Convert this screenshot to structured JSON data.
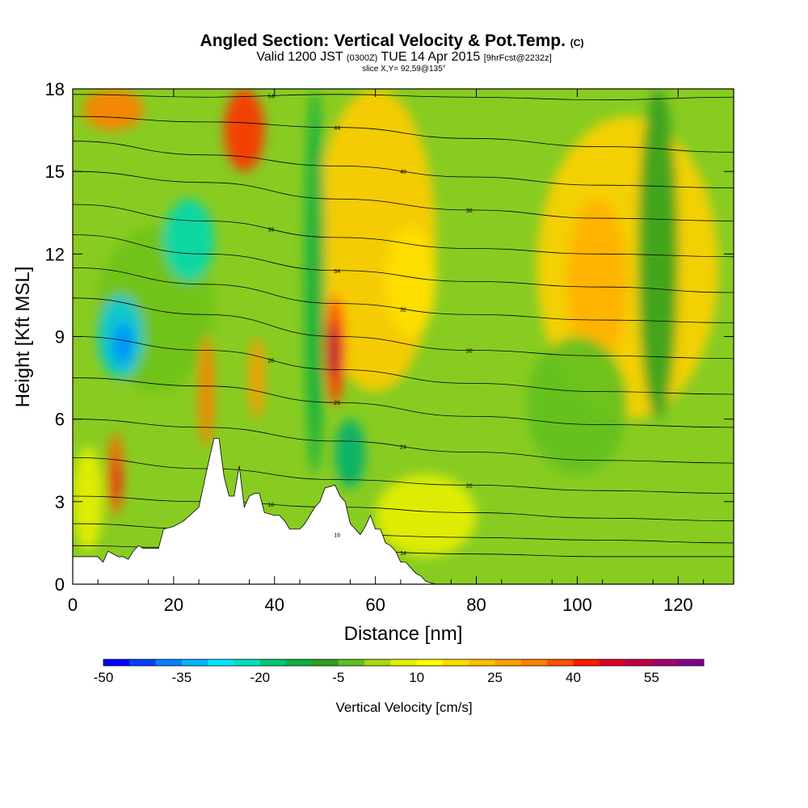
{
  "chart_data": {
    "type": "heatmap",
    "title": "Angled Section: Vertical Velocity & Pot.Temp.",
    "title_suffix": "(C)",
    "subtitle_parts": {
      "valid": "Valid 1200 JST",
      "utc": "(0300Z)",
      "date": "TUE 14 Apr 2015",
      "fcst": "[9hrFcst@2232z]"
    },
    "slice_label": "slice X,Y= 92,59@135°",
    "xlabel": "Distance [nm]",
    "ylabel": "Height [Kft MSL]",
    "xlim": [
      0,
      131
    ],
    "ylim": [
      0,
      18
    ],
    "x_ticks": [
      "0",
      "20",
      "40",
      "60",
      "80",
      "100",
      "120"
    ],
    "y_ticks": [
      "0",
      "3",
      "6",
      "9",
      "12",
      "15",
      "18"
    ],
    "colorbar": {
      "label": "Vertical Velocity [cm/s]",
      "range": [
        -50,
        60
      ],
      "step": 5,
      "tick_labels": [
        "-50",
        "-35",
        "-20",
        "-5",
        "10",
        "25",
        "40",
        "55"
      ],
      "colors": [
        "#0000ff",
        "#0040ff",
        "#0080ff",
        "#00b4ff",
        "#00e8ff",
        "#00e0c0",
        "#00c870",
        "#10b040",
        "#30a020",
        "#60c020",
        "#a8d810",
        "#e0f000",
        "#ffff00",
        "#ffdc00",
        "#ffc000",
        "#ffa000",
        "#ff8000",
        "#ff5000",
        "#ff1800",
        "#e00020",
        "#c00040",
        "#a00070",
        "#800090"
      ]
    },
    "terrain_kft": [
      [
        0,
        1
      ],
      [
        5,
        1
      ],
      [
        6,
        0.8
      ],
      [
        7,
        1.2
      ],
      [
        9,
        1
      ],
      [
        10,
        1
      ],
      [
        11,
        0.9
      ],
      [
        12,
        1.2
      ],
      [
        13,
        1.4
      ],
      [
        14,
        1.3
      ],
      [
        17,
        1.3
      ],
      [
        18,
        2.0
      ],
      [
        20,
        2.1
      ],
      [
        22,
        2.3
      ],
      [
        25,
        2.8
      ],
      [
        27,
        4.5
      ],
      [
        28,
        5.3
      ],
      [
        29,
        5.3
      ],
      [
        30,
        3.9
      ],
      [
        31,
        3.2
      ],
      [
        32,
        3.2
      ],
      [
        33,
        4.3
      ],
      [
        34,
        2.8
      ],
      [
        35,
        3.2
      ],
      [
        36,
        3.3
      ],
      [
        37,
        3.3
      ],
      [
        38,
        2.6
      ],
      [
        40,
        2.5
      ],
      [
        41,
        2.5
      ],
      [
        42,
        2.3
      ],
      [
        43,
        2.0
      ],
      [
        45,
        2.0
      ],
      [
        46,
        2.2
      ],
      [
        47,
        2.5
      ],
      [
        48,
        2.8
      ],
      [
        49,
        3.0
      ],
      [
        50,
        3.5
      ],
      [
        52,
        3.6
      ],
      [
        53,
        3.2
      ],
      [
        54,
        3.0
      ],
      [
        55,
        2.2
      ],
      [
        56,
        2.0
      ],
      [
        57,
        1.8
      ],
      [
        58,
        2.1
      ],
      [
        59,
        2.5
      ],
      [
        60,
        2.0
      ],
      [
        61,
        2.0
      ],
      [
        62,
        1.5
      ],
      [
        63,
        1.4
      ],
      [
        64,
        1.2
      ],
      [
        65,
        0.8
      ],
      [
        66,
        0.8
      ],
      [
        67,
        0.6
      ],
      [
        68,
        0.4
      ],
      [
        69,
        0.3
      ],
      [
        70,
        0.1
      ],
      [
        72,
        0
      ],
      [
        131,
        0
      ]
    ],
    "theta_contours": [
      {
        "label": "64",
        "levels": [
          17.8,
          17.7,
          17.8,
          17.7,
          17.6,
          17.7
        ]
      },
      {
        "label": "44",
        "levels": [
          17.0,
          16.8,
          16.6,
          16.2,
          15.9,
          15.7
        ]
      },
      {
        "label": "40",
        "levels": [
          16.1,
          15.6,
          15.2,
          14.8,
          14.5,
          14.4
        ]
      },
      {
        "label": "38",
        "levels": [
          15.0,
          14.6,
          14.0,
          13.6,
          13.3,
          13.2
        ]
      },
      {
        "label": "36",
        "levels": [
          13.8,
          13.2,
          12.6,
          12.2,
          12.0,
          11.9
        ]
      },
      {
        "label": "34",
        "levels": [
          12.7,
          12.0,
          11.4,
          11.0,
          10.8,
          10.6
        ]
      },
      {
        "label": "32",
        "levels": [
          11.5,
          10.9,
          10.2,
          9.8,
          9.6,
          9.5
        ]
      },
      {
        "label": "30",
        "levels": [
          10.4,
          9.8,
          9.0,
          8.5,
          8.3,
          8.2
        ]
      },
      {
        "label": "28",
        "levels": [
          9.0,
          8.5,
          7.8,
          7.3,
          7.0,
          6.9
        ]
      },
      {
        "label": "26",
        "levels": [
          7.5,
          7.2,
          6.6,
          6.1,
          5.8,
          5.7
        ]
      },
      {
        "label": "24",
        "levels": [
          6.0,
          5.7,
          5.2,
          4.8,
          4.5,
          4.4
        ]
      },
      {
        "label": "20",
        "levels": [
          4.6,
          4.2,
          3.8,
          3.6,
          3.4,
          3.3
        ]
      },
      {
        "label": "18",
        "levels": [
          3.2,
          3.0,
          2.8,
          2.6,
          2.4,
          2.3
        ]
      },
      {
        "label": "16",
        "levels": [
          2.2,
          2.0,
          1.8,
          1.7,
          1.6,
          1.5
        ]
      },
      {
        "label": "14",
        "levels": [
          1.4,
          1.3,
          1.2,
          1.1,
          1.0,
          1.0
        ]
      }
    ]
  }
}
